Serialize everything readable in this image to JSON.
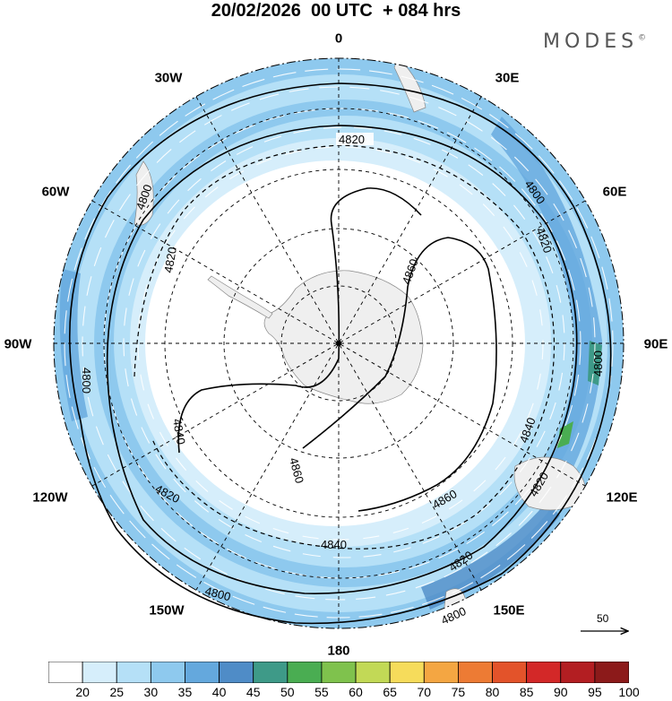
{
  "header": {
    "title": "20/02/2026  00 UTC  + 084 hrs",
    "brand": "MODES"
  },
  "longitude_labels": [
    "0",
    "30E",
    "60E",
    "90E",
    "120E",
    "150E",
    "180",
    "150W",
    "120W",
    "90W",
    "60W",
    "30W"
  ],
  "contour_labels": {
    "c4800": "4800",
    "c4820": "4820",
    "c4840": "4840",
    "c4860": "4860"
  },
  "reference_vector": {
    "value": "50"
  },
  "colorbar": {
    "tick_labels": [
      "20",
      "25",
      "30",
      "35",
      "40",
      "45",
      "50",
      "55",
      "60",
      "65",
      "70",
      "75",
      "80",
      "85",
      "90",
      "95",
      "100"
    ],
    "colors": [
      "#ffffff",
      "#d6eefb",
      "#b5e0f7",
      "#8ec9ee",
      "#64a8dd",
      "#4f8cc7",
      "#3e9a88",
      "#4aad52",
      "#7fc24d",
      "#c2d956",
      "#f6dc5b",
      "#f4a642",
      "#ed7b34",
      "#e3532a",
      "#d32828",
      "#b31e22",
      "#8c1a1a"
    ]
  },
  "chart_data": {
    "type": "polar_stereographic_map",
    "title": "20/02/2026  00 UTC  + 084 hrs",
    "projection": "south polar stereographic, 0 at top, 180 at bottom",
    "variables": [
      "wind speed (shaded)",
      "wind vectors",
      "geopotential height contours"
    ],
    "contour_levels": [
      4800,
      4820,
      4840,
      4860
    ],
    "shading_levels": [
      20,
      25,
      30,
      35,
      40,
      45,
      50,
      55,
      60,
      65,
      70,
      75,
      80,
      85,
      90,
      95,
      100
    ],
    "reference_vector": 50
  }
}
